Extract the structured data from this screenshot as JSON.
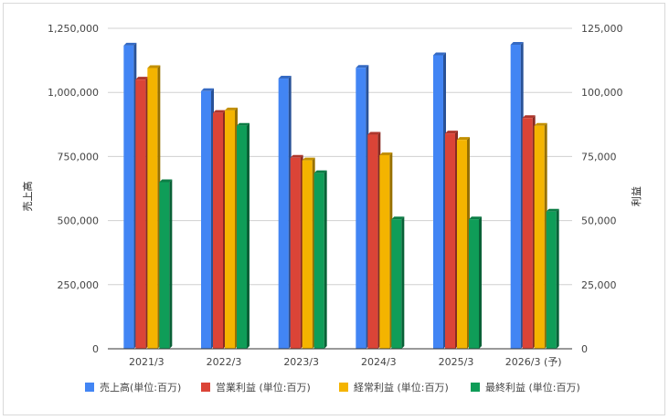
{
  "chart_data": {
    "type": "bar",
    "style": "3d-columns",
    "categories": [
      "2021/3",
      "2022/3",
      "2023/3",
      "2024/3",
      "2025/3",
      "2026/3 (予)"
    ],
    "series": [
      {
        "name": "売上高(単位:百万)",
        "axis": "left",
        "color": "#4285f4",
        "values": [
          1183000,
          1005000,
          1054000,
          1096000,
          1145000,
          1186000
        ]
      },
      {
        "name": "営業利益 (単位:百万)",
        "axis": "right",
        "color": "#db4437",
        "values": [
          105000,
          92000,
          74500,
          83500,
          84000,
          90000
        ]
      },
      {
        "name": "経常利益 (単位:百万)",
        "axis": "right",
        "color": "#f4b400",
        "values": [
          109500,
          93000,
          73500,
          75500,
          81500,
          87000
        ]
      },
      {
        "name": "最終利益 (単位:百万)",
        "axis": "right",
        "color": "#0f9d58",
        "values": [
          65000,
          87000,
          68500,
          50500,
          50500,
          53500
        ]
      }
    ],
    "ylabel": "売上高",
    "y2label": "利益",
    "ylim": [
      0,
      1250000
    ],
    "y2lim": [
      0,
      125000
    ],
    "yticks": [
      "0",
      "250,000",
      "500,000",
      "750,000",
      "1,000,000",
      "1,250,000"
    ],
    "y2ticks": [
      "0",
      "25,000",
      "50,000",
      "75,000",
      "100,000",
      "125,000"
    ],
    "grid": true,
    "legend_position": "bottom"
  }
}
